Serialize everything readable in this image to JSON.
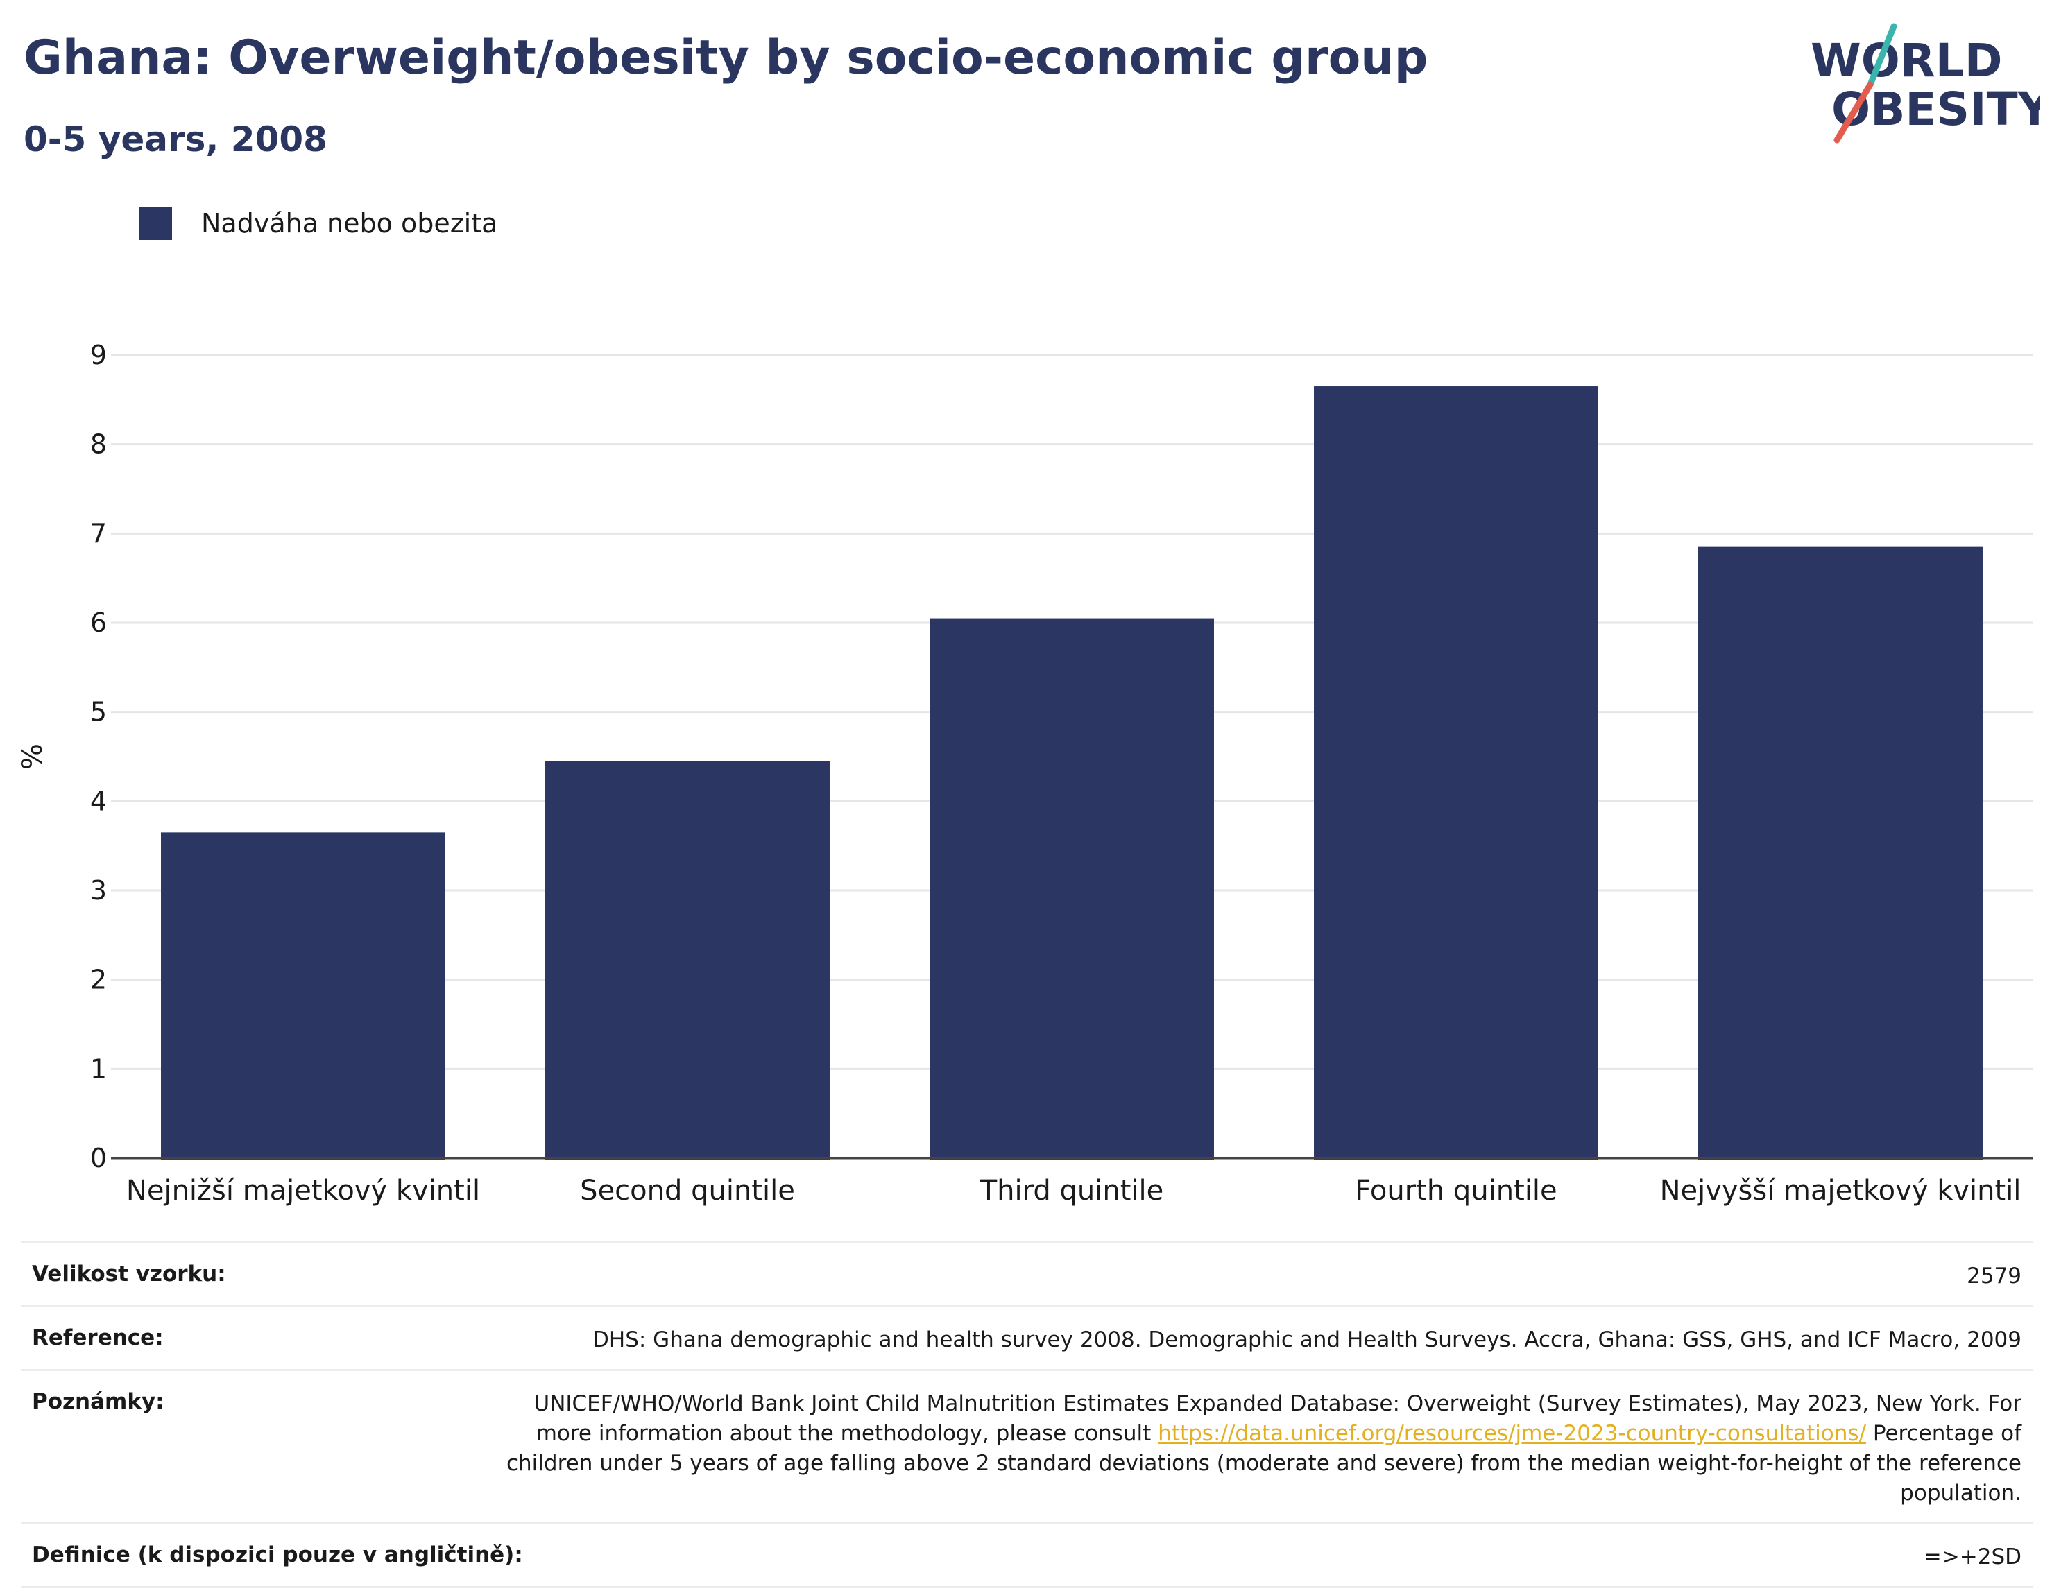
{
  "header": {
    "title": "Ghana: Overweight/obesity by socio-economic group",
    "subtitle": "0-5 years, 2008"
  },
  "logo": {
    "line1": "WORLD",
    "line2": "OBESITY",
    "accent_teal": "#3bb4b0",
    "accent_red": "#e35d4e"
  },
  "legend": {
    "label": "Nadváha nebo obezita",
    "color": "#2b3663"
  },
  "chart_data": {
    "type": "bar",
    "categories": [
      "Nejnižší majetkový kvintil",
      "Second quintile",
      "Third quintile",
      "Fourth quintile",
      "Nejvyšší majetkový kvintil"
    ],
    "series": [
      {
        "name": "Nadváha nebo obezita",
        "values": [
          3.65,
          4.45,
          6.05,
          8.65,
          6.85
        ],
        "color": "#2b3663"
      }
    ],
    "ylabel": "%",
    "ylim": [
      0,
      9
    ],
    "yticks": [
      "0",
      "1",
      "2",
      "3",
      "4",
      "5",
      "6",
      "7",
      "8",
      "9"
    ],
    "grid": true,
    "legend_position": "top-left"
  },
  "info": {
    "sample_label": "Velikost vzorku:",
    "sample_value": "2579",
    "reference_label": "Reference:",
    "reference_value": "DHS: Ghana demographic and health survey 2008. Demographic and Health Surveys. Accra, Ghana: GSS, GHS, and ICF Macro, 2009",
    "notes_label": "Poznámky:",
    "notes_text_1": "UNICEF/WHO/World Bank Joint Child Malnutrition Estimates Expanded Database: Overweight (Survey Estimates), May 2023, New York. For more information about the methodology, please consult",
    "notes_link": "https://data.unicef.org/resources/jme-2023-country-consultations/",
    "notes_text_2": "Percentage of children under 5 years of age falling above 2 standard deviations (moderate and severe) from the median weight-for-height of the reference population.",
    "definition_label": "Definice (k dispozici pouze v angličtině):",
    "definition_value": "=>+2SD"
  }
}
